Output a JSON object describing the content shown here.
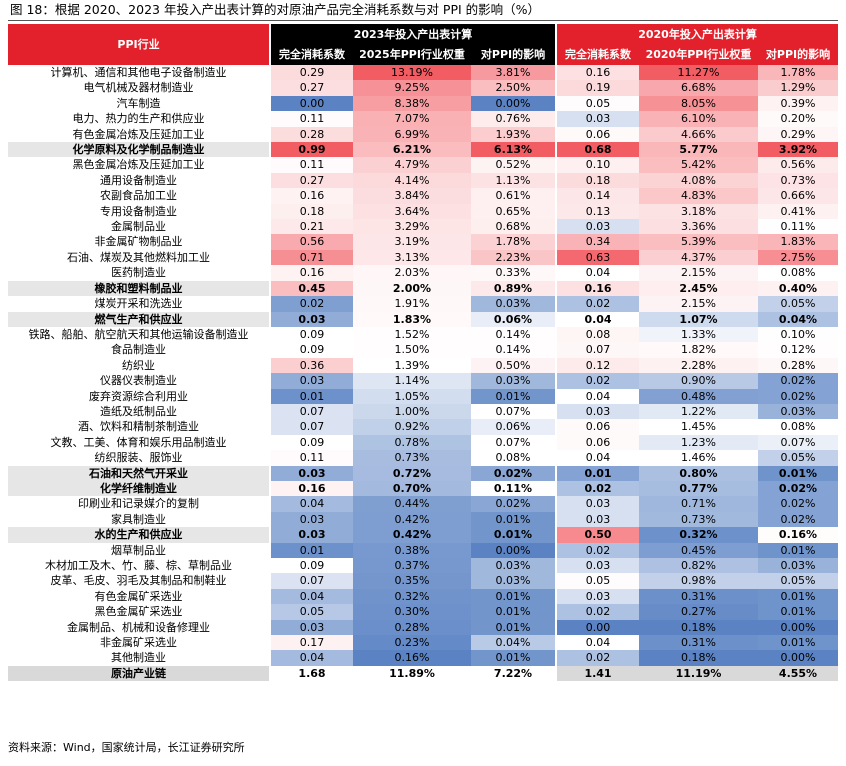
{
  "title": "图 18：根据 2020、2023 年投入产出表计算的对原油产品完全消耗系数与对 PPI 的影响（%）",
  "source": "资料来源：Wind，国家统计局，长江证券研究所",
  "header": {
    "row_label": "PPI行业",
    "group_2023": "2023年投入产出表计算",
    "group_2020": "2020年投入产出表计算",
    "cols_2023": [
      "完全消耗系数",
      "2025年PPI行业权重",
      "对PPI的影响"
    ],
    "cols_2020": [
      "完全消耗系数",
      "2020年PPI行业权重",
      "对PPI的影响"
    ]
  },
  "palette": {
    "red": "#e3212c",
    "blue_max": "#5b83c4",
    "red_max": "#f25c63",
    "white": "#ffffff"
  },
  "rows": [
    {
      "name": "计算机、通信和其他电子设备制造业",
      "bold": false,
      "v": [
        "0.29",
        "13.19%",
        "3.81%",
        "0.16",
        "11.27%",
        "1.78%"
      ]
    },
    {
      "name": "电气机械及器材制造业",
      "bold": false,
      "v": [
        "0.27",
        "9.25%",
        "2.50%",
        "0.19",
        "6.68%",
        "1.29%"
      ]
    },
    {
      "name": "汽车制造",
      "bold": false,
      "v": [
        "0.00",
        "8.38%",
        "0.00%",
        "0.05",
        "8.05%",
        "0.39%"
      ]
    },
    {
      "name": "电力、热力的生产和供应业",
      "bold": false,
      "v": [
        "0.11",
        "7.07%",
        "0.76%",
        "0.03",
        "6.10%",
        "0.20%"
      ]
    },
    {
      "name": "有色金属冶炼及压延加工业",
      "bold": false,
      "v": [
        "0.28",
        "6.99%",
        "1.93%",
        "0.06",
        "4.66%",
        "0.29%"
      ]
    },
    {
      "name": "化学原料及化学制品制造业",
      "bold": true,
      "v": [
        "0.99",
        "6.21%",
        "6.13%",
        "0.68",
        "5.77%",
        "3.92%"
      ]
    },
    {
      "name": "黑色金属冶炼及压延加工业",
      "bold": false,
      "v": [
        "0.11",
        "4.79%",
        "0.52%",
        "0.10",
        "5.42%",
        "0.56%"
      ]
    },
    {
      "name": "通用设备制造业",
      "bold": false,
      "v": [
        "0.27",
        "4.14%",
        "1.13%",
        "0.18",
        "4.08%",
        "0.73%"
      ]
    },
    {
      "name": "农副食品加工业",
      "bold": false,
      "v": [
        "0.16",
        "3.84%",
        "0.61%",
        "0.14",
        "4.83%",
        "0.66%"
      ]
    },
    {
      "name": "专用设备制造业",
      "bold": false,
      "v": [
        "0.18",
        "3.64%",
        "0.65%",
        "0.13",
        "3.18%",
        "0.41%"
      ]
    },
    {
      "name": "金属制品业",
      "bold": false,
      "v": [
        "0.21",
        "3.29%",
        "0.68%",
        "0.03",
        "3.36%",
        "0.11%"
      ]
    },
    {
      "name": "非金属矿物制品业",
      "bold": false,
      "v": [
        "0.56",
        "3.19%",
        "1.78%",
        "0.34",
        "5.39%",
        "1.83%"
      ]
    },
    {
      "name": "石油、煤炭及其他燃料加工业",
      "bold": false,
      "v": [
        "0.71",
        "3.13%",
        "2.23%",
        "0.63",
        "4.37%",
        "2.75%"
      ]
    },
    {
      "name": "医药制造业",
      "bold": false,
      "v": [
        "0.16",
        "2.03%",
        "0.33%",
        "0.04",
        "2.15%",
        "0.08%"
      ]
    },
    {
      "name": "橡胶和塑料制品业",
      "bold": true,
      "v": [
        "0.45",
        "2.00%",
        "0.89%",
        "0.16",
        "2.45%",
        "0.40%"
      ]
    },
    {
      "name": "煤炭开采和洗选业",
      "bold": false,
      "v": [
        "0.02",
        "1.91%",
        "0.03%",
        "0.02",
        "2.15%",
        "0.05%"
      ]
    },
    {
      "name": "燃气生产和供应业",
      "bold": true,
      "v": [
        "0.03",
        "1.83%",
        "0.06%",
        "0.04",
        "1.07%",
        "0.04%"
      ]
    },
    {
      "name": "铁路、船舶、航空航天和其他运输设备制造业",
      "bold": false,
      "v": [
        "0.09",
        "1.52%",
        "0.14%",
        "0.08",
        "1.33%",
        "0.10%"
      ]
    },
    {
      "name": "食品制造业",
      "bold": false,
      "v": [
        "0.09",
        "1.50%",
        "0.14%",
        "0.07",
        "1.82%",
        "0.12%"
      ]
    },
    {
      "name": "纺织业",
      "bold": false,
      "v": [
        "0.36",
        "1.39%",
        "0.50%",
        "0.12",
        "2.28%",
        "0.28%"
      ]
    },
    {
      "name": "仪器仪表制造业",
      "bold": false,
      "v": [
        "0.03",
        "1.14%",
        "0.03%",
        "0.02",
        "0.90%",
        "0.02%"
      ]
    },
    {
      "name": "废弃资源综合利用业",
      "bold": false,
      "v": [
        "0.01",
        "1.05%",
        "0.01%",
        "0.04",
        "0.48%",
        "0.02%"
      ]
    },
    {
      "name": "造纸及纸制品业",
      "bold": false,
      "v": [
        "0.07",
        "1.00%",
        "0.07%",
        "0.03",
        "1.22%",
        "0.03%"
      ]
    },
    {
      "name": "酒、饮料和精制茶制造业",
      "bold": false,
      "v": [
        "0.07",
        "0.92%",
        "0.06%",
        "0.06",
        "1.45%",
        "0.08%"
      ]
    },
    {
      "name": "文教、工美、体育和娱乐用品制造业",
      "bold": false,
      "v": [
        "0.09",
        "0.78%",
        "0.07%",
        "0.06",
        "1.23%",
        "0.07%"
      ]
    },
    {
      "name": "纺织服装、服饰业",
      "bold": false,
      "v": [
        "0.11",
        "0.73%",
        "0.08%",
        "0.04",
        "1.46%",
        "0.05%"
      ]
    },
    {
      "name": "石油和天然气开采业",
      "bold": true,
      "v": [
        "0.03",
        "0.72%",
        "0.02%",
        "0.01",
        "0.80%",
        "0.01%"
      ]
    },
    {
      "name": "化学纤维制造业",
      "bold": true,
      "v": [
        "0.16",
        "0.70%",
        "0.11%",
        "0.02",
        "0.77%",
        "0.02%"
      ]
    },
    {
      "name": "印刷业和记录媒介的复制",
      "bold": false,
      "v": [
        "0.04",
        "0.44%",
        "0.02%",
        "0.03",
        "0.71%",
        "0.02%"
      ]
    },
    {
      "name": "家具制造业",
      "bold": false,
      "v": [
        "0.03",
        "0.42%",
        "0.01%",
        "0.03",
        "0.73%",
        "0.02%"
      ]
    },
    {
      "name": "水的生产和供应业",
      "bold": true,
      "v": [
        "0.03",
        "0.42%",
        "0.01%",
        "0.50",
        "0.32%",
        "0.16%"
      ]
    },
    {
      "name": "烟草制品业",
      "bold": false,
      "v": [
        "0.01",
        "0.38%",
        "0.00%",
        "0.02",
        "0.45%",
        "0.01%"
      ]
    },
    {
      "name": "木材加工及木、竹、藤、棕、草制品业",
      "bold": false,
      "v": [
        "0.09",
        "0.37%",
        "0.03%",
        "0.03",
        "0.82%",
        "0.03%"
      ]
    },
    {
      "name": "皮革、毛皮、羽毛及其制品和制鞋业",
      "bold": false,
      "v": [
        "0.07",
        "0.35%",
        "0.03%",
        "0.05",
        "0.98%",
        "0.05%"
      ]
    },
    {
      "name": "有色金属矿采选业",
      "bold": false,
      "v": [
        "0.04",
        "0.32%",
        "0.01%",
        "0.03",
        "0.31%",
        "0.01%"
      ]
    },
    {
      "name": "黑色金属矿采选业",
      "bold": false,
      "v": [
        "0.05",
        "0.30%",
        "0.01%",
        "0.02",
        "0.27%",
        "0.01%"
      ]
    },
    {
      "name": "金属制品、机械和设备修理业",
      "bold": false,
      "v": [
        "0.03",
        "0.28%",
        "0.01%",
        "0.00",
        "0.18%",
        "0.00%"
      ]
    },
    {
      "name": "非金属矿采选业",
      "bold": false,
      "v": [
        "0.17",
        "0.23%",
        "0.04%",
        "0.04",
        "0.31%",
        "0.01%"
      ]
    },
    {
      "name": "其他制造业",
      "bold": false,
      "v": [
        "0.04",
        "0.16%",
        "0.01%",
        "0.02",
        "0.18%",
        "0.00%"
      ]
    }
  ],
  "total": {
    "name": "原油产业链",
    "v": [
      "1.68",
      "11.89%",
      "7.22%",
      "1.41",
      "11.19%",
      "4.55%"
    ]
  }
}
